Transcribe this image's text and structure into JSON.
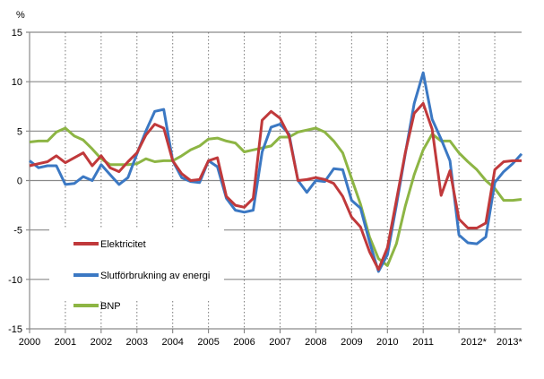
{
  "chart_data": {
    "type": "line",
    "ylabel": "%",
    "ylim": [
      -15,
      15
    ],
    "yticks": [
      15,
      10,
      5,
      0,
      -5,
      -10,
      -15
    ],
    "x_start_year": 2000,
    "periods_per_year": 4,
    "xtick_labels": [
      "2000",
      "2001",
      "2002",
      "2003",
      "2004",
      "2005",
      "2006",
      "2007",
      "2008",
      "2009",
      "2010",
      "2011",
      "2012*",
      "2013*"
    ],
    "grid": "horizontal solid, vertical dotted at year boundaries",
    "legend_position": "bottom-left",
    "series": [
      {
        "name": "Elektricitet",
        "color": "#c0393b",
        "values": [
          1.5,
          1.7,
          1.9,
          2.5,
          1.8,
          2.3,
          2.8,
          1.5,
          2.5,
          1.3,
          0.9,
          1.9,
          2.8,
          4.6,
          5.7,
          5.3,
          2.0,
          0.7,
          0.0,
          0.1,
          2.0,
          2.3,
          -1.6,
          -2.5,
          -2.7,
          -1.8,
          6.1,
          7.0,
          6.3,
          4.5,
          0.0,
          0.1,
          0.3,
          0.1,
          -0.3,
          -1.6,
          -3.7,
          -4.7,
          -7.2,
          -9.0,
          -6.8,
          -2.0,
          2.8,
          6.8,
          7.8,
          5.2,
          -1.5,
          1.0,
          -3.9,
          -4.8,
          -4.8,
          -4.3,
          1.1,
          1.9,
          2.0,
          2.0
        ]
      },
      {
        "name": "Slutförbrukning av energi",
        "color": "#3b78c3",
        "values": [
          2.0,
          1.3,
          1.5,
          1.5,
          -0.4,
          -0.3,
          0.4,
          0.0,
          1.6,
          0.6,
          -0.4,
          0.3,
          2.7,
          5.0,
          7.0,
          7.2,
          2.0,
          0.3,
          -0.1,
          -0.2,
          2.0,
          1.4,
          -1.8,
          -3.0,
          -3.2,
          -3.0,
          2.9,
          5.4,
          5.7,
          4.7,
          0.0,
          -1.2,
          0.0,
          -0.1,
          1.2,
          1.1,
          -2.0,
          -2.8,
          -6.2,
          -9.2,
          -7.5,
          -2.5,
          2.7,
          7.8,
          10.9,
          6.2,
          4.2,
          2.0,
          -5.5,
          -6.3,
          -6.4,
          -5.7,
          -0.2,
          0.9,
          1.7,
          2.7
        ]
      },
      {
        "name": "BNP",
        "color": "#8db544",
        "values": [
          3.9,
          4.0,
          4.0,
          4.9,
          5.3,
          4.5,
          4.1,
          3.2,
          2.2,
          1.6,
          1.6,
          1.6,
          1.7,
          2.2,
          1.9,
          2.0,
          2.0,
          2.5,
          3.1,
          3.5,
          4.2,
          4.3,
          4.0,
          3.8,
          2.9,
          3.1,
          3.3,
          3.5,
          4.4,
          4.4,
          4.9,
          5.1,
          5.3,
          4.9,
          4.0,
          2.8,
          0.2,
          -2.4,
          -5.7,
          -7.9,
          -8.6,
          -6.4,
          -2.6,
          0.6,
          3.1,
          4.7,
          4.0,
          4.0,
          2.8,
          1.9,
          1.1,
          0.0,
          -0.8,
          -2.0,
          -2.0,
          -1.9
        ]
      }
    ]
  }
}
